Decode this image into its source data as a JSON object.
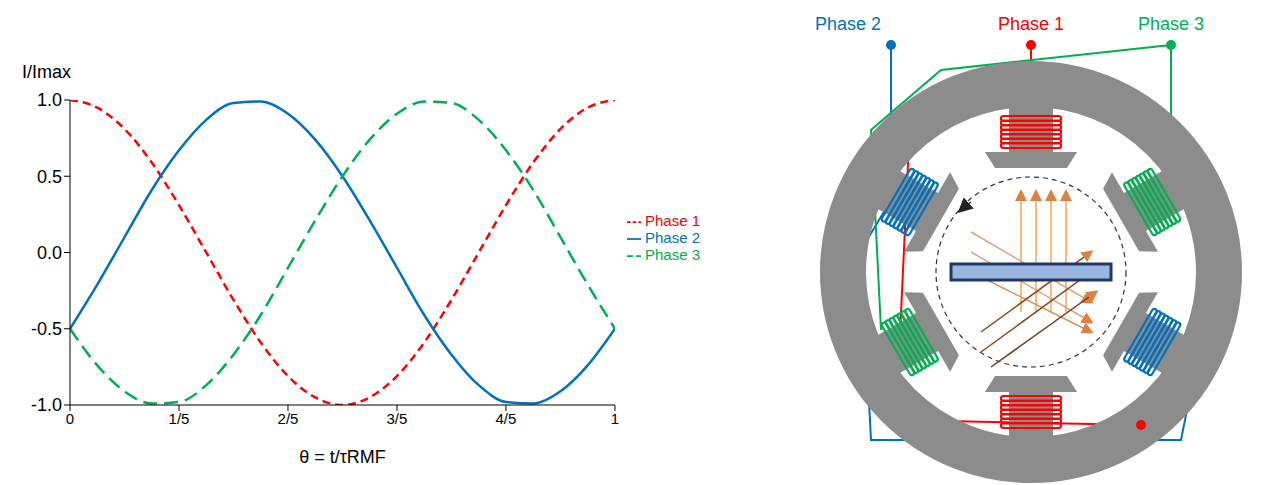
{
  "chart_data": {
    "type": "line",
    "y_label": "I/Imax",
    "x_label": "θ = t/τRMF",
    "x": [
      0,
      0.05,
      0.1,
      0.15,
      0.2,
      0.25,
      0.3,
      0.35,
      0.4,
      0.45,
      0.5,
      0.55,
      0.6,
      0.65,
      0.7,
      0.75,
      0.8,
      0.85,
      0.9,
      0.95,
      1
    ],
    "series": [
      {
        "name": "Phase 1",
        "color": "#ff0000",
        "line_style": "dashed",
        "values": [
          1,
          0.95,
          0.81,
          0.59,
          0.31,
          0,
          -0.31,
          -0.59,
          -0.81,
          -0.95,
          -1,
          -0.95,
          -0.81,
          -0.59,
          -0.31,
          0,
          0.31,
          0.59,
          0.81,
          0.95,
          1
        ]
      },
      {
        "name": "Phase 2",
        "color": "#0070c0",
        "line_style": "solid",
        "values": [
          -0.5,
          -0.21,
          0.1,
          0.41,
          0.67,
          0.87,
          0.98,
          0.99,
          0.91,
          0.74,
          0.5,
          0.21,
          -0.1,
          -0.41,
          -0.67,
          -0.87,
          -0.98,
          -0.99,
          -0.91,
          -0.74,
          -0.5
        ]
      },
      {
        "name": "Phase 3",
        "color": "#00b050",
        "line_style": "long_dashed",
        "values": [
          -0.5,
          -0.74,
          -0.91,
          -0.99,
          -0.98,
          -0.87,
          -0.67,
          -0.41,
          -0.1,
          0.21,
          0.5,
          0.74,
          0.91,
          0.99,
          0.98,
          0.87,
          0.67,
          0.41,
          0.1,
          -0.21,
          -0.5
        ]
      }
    ],
    "xlim": [
      0,
      1
    ],
    "xticks": [
      0,
      {
        "value": 0.2,
        "label": "1/5"
      },
      {
        "value": 0.4,
        "label": "2/5"
      },
      {
        "value": 0.6,
        "label": "3/5"
      },
      {
        "value": 0.8,
        "label": "4/5"
      },
      1
    ],
    "ylim": [
      -1,
      1
    ],
    "yticks": [
      {
        "value": -1,
        "label": "-1.0"
      },
      -0.5,
      {
        "value": 0,
        "label": "0.0"
      },
      0.5,
      {
        "value": 1,
        "label": "1.0"
      }
    ],
    "grid": false,
    "legend": "right"
  },
  "diagram": {
    "labels": [
      "Phase 1",
      "Phase 2",
      "Phase 3"
    ]
  }
}
